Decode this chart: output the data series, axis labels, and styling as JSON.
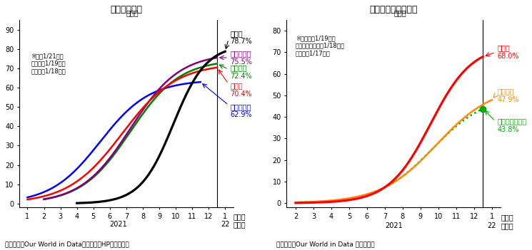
{
  "title1": "（１）先進国",
  "title2": "（２）アジア新興国",
  "note1": "（備考）　Our World in Data、首相官邸HPより作成。",
  "note2": "（備考）　Our World in Data より作成。",
  "ylabel": "（％）",
  "xlabel_month": "（月）",
  "xlabel_year": "（年）",
  "ax1_note": "※日は1/21時点\n　米独は1/19時点\n　仏英は1/18時点",
  "ax2_note": "※インドは1/19時点\n　インドネシアは1/18時点\n　タイは1/17時点",
  "ax1_yticks": [
    0,
    10,
    20,
    30,
    40,
    50,
    60,
    70,
    80,
    90
  ],
  "ax2_yticks": [
    0,
    10,
    20,
    30,
    40,
    50,
    60,
    70,
    80
  ],
  "colors": {
    "japan": "#000000",
    "france": "#800080",
    "germany": "#008000",
    "uk": "#ff0000",
    "usa": "#0000ff",
    "thailand": "#ff0000",
    "india": "#ff8c00",
    "indonesia": "#00aa00"
  },
  "labels": {
    "japan": "日本：\n78.7%",
    "france": "フランス：\n75.5%",
    "germany": "ドイツ：\n72.4%",
    "uk": "英国：\n70.4%",
    "usa": "アメリカ：\n62.9%",
    "thailand": "タイ：\n68.0%",
    "india": "インド：\n47.9%",
    "indonesia": "インドネシア：\n43.8%"
  }
}
